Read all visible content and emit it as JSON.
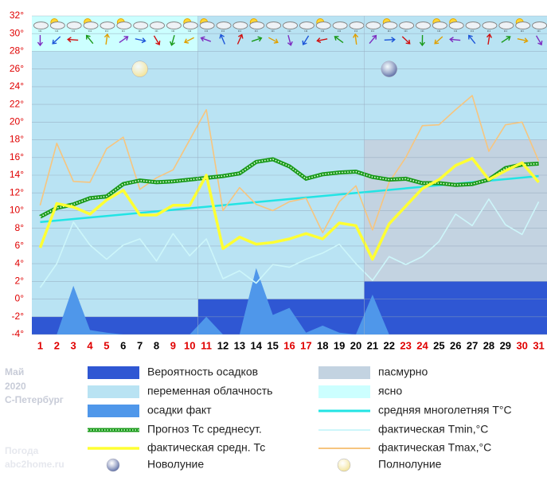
{
  "chart_data": {
    "type": "line",
    "x": [
      1,
      2,
      3,
      4,
      5,
      6,
      7,
      8,
      9,
      10,
      11,
      12,
      13,
      14,
      15,
      16,
      17,
      18,
      19,
      20,
      21,
      22,
      23,
      24,
      25,
      26,
      27,
      28,
      29,
      30,
      31
    ],
    "xlim": [
      0.5,
      31.5
    ],
    "xticks": [
      1,
      2,
      3,
      4,
      5,
      6,
      7,
      8,
      9,
      10,
      11,
      12,
      13,
      14,
      15,
      16,
      17,
      18,
      19,
      20,
      21,
      22,
      23,
      24,
      25,
      26,
      27,
      28,
      29,
      30,
      31
    ],
    "xtick_colors": [
      "#e00000",
      "#e00000",
      "#e00000",
      "#e00000",
      "#e00000",
      "#000000",
      "#000000",
      "#000000",
      "#e00000",
      "#e00000",
      "#e00000",
      "#000000",
      "#000000",
      "#000000",
      "#000000",
      "#e00000",
      "#e00000",
      "#000000",
      "#000000",
      "#000000",
      "#000000",
      "#000000",
      "#e00000",
      "#e00000",
      "#000000",
      "#000000",
      "#000000",
      "#000000",
      "#000000",
      "#e00000",
      "#e00000"
    ],
    "ylim": [
      -4,
      32
    ],
    "yticks": [
      {
        "value": 32,
        "label": "32°"
      },
      {
        "value": 30,
        "label": "30°"
      },
      {
        "value": 28,
        "label": "28°"
      },
      {
        "value": 26,
        "label": "26°"
      },
      {
        "value": 24,
        "label": "24°"
      },
      {
        "value": 22,
        "label": "22°"
      },
      {
        "value": 20,
        "label": "20°"
      },
      {
        "value": 18,
        "label": "18°"
      },
      {
        "value": 16,
        "label": "16°"
      },
      {
        "value": 14,
        "label": "14°"
      },
      {
        "value": 12,
        "label": "12°"
      },
      {
        "value": 10,
        "label": "10°"
      },
      {
        "value": 8,
        "label": "8°"
      },
      {
        "value": 6,
        "label": "6°"
      },
      {
        "value": 4,
        "label": "4°"
      },
      {
        "value": 2,
        "label": "2°"
      },
      {
        "value": 0,
        "label": "0°"
      },
      {
        "value": -2,
        "label": "-2°"
      },
      {
        "value": -4,
        "label": "-4°"
      }
    ],
    "grid": true,
    "areas": [
      {
        "name": "Вероятность осадков",
        "color": "#2f57d3",
        "rects": [
          [
            0.5,
            10.5,
            -4,
            -2
          ],
          [
            10.5,
            20.5,
            -4,
            0
          ],
          [
            20.5,
            31.5,
            -4,
            2
          ]
        ]
      },
      {
        "name": "пасмурно",
        "color": "#c3d3e1",
        "rects": [
          [
            20.5,
            31.5,
            2,
            18
          ]
        ]
      },
      {
        "name": "переменная облачность",
        "color": "#b9e3f3",
        "rects": [
          [
            0.5,
            10.5,
            -2,
            28
          ],
          [
            10.5,
            20.5,
            0,
            32
          ],
          [
            20.5,
            31.5,
            18,
            32
          ]
        ]
      },
      {
        "name": "ясно",
        "color": "#ccffff",
        "rects": [
          [
            0.5,
            10.5,
            28,
            32
          ]
        ]
      }
    ],
    "series": [
      {
        "name": "осадки факт",
        "kind": "area",
        "color": "#4f97ea",
        "values": [
          -4,
          -4,
          1.5,
          -3.5,
          -3.8,
          -4,
          -4,
          -4,
          -4,
          -4,
          -2,
          -4,
          -4,
          3.5,
          -1.8,
          -1,
          -3.8,
          -3,
          -3.8,
          -4,
          0.5,
          -4,
          -4,
          -4,
          -4,
          -4,
          -4,
          -4,
          -4,
          -4,
          -4
        ]
      },
      {
        "name": "Прогноз Тс среднесут.",
        "kind": "dotted",
        "color": "#1a9a1a",
        "values": [
          9.3,
          10.3,
          10.7,
          11.4,
          11.6,
          13.0,
          13.4,
          13.2,
          13.3,
          13.5,
          13.7,
          13.9,
          14.2,
          15.5,
          15.8,
          15.0,
          13.6,
          14.1,
          14.3,
          14.4,
          13.8,
          13.5,
          13.6,
          13.1,
          13.1,
          12.9,
          13.0,
          13.5,
          14.8,
          15.2,
          15.3
        ]
      },
      {
        "name": "фактическая средн. Тс",
        "kind": "thick",
        "color": "#ffff33",
        "values": [
          5.8,
          10.8,
          10.4,
          9.6,
          11.2,
          12.3,
          9.5,
          9.5,
          10.6,
          10.6,
          14.0,
          5.7,
          7.0,
          6.2,
          6.4,
          6.8,
          7.4,
          6.8,
          8.6,
          8.3,
          4.5,
          8.5,
          10.5,
          12.5,
          13.5,
          15.1,
          15.9,
          13.5,
          14.5,
          15.4,
          13.2
        ]
      },
      {
        "name": "средняя многолетняя T°C",
        "kind": "line",
        "color": "#22e4e4",
        "x": [
          1,
          31
        ],
        "values": [
          8.7,
          13.9
        ]
      },
      {
        "name": "фактическая Tmin,°C",
        "kind": "thin",
        "color": "#cdf6fa",
        "values": [
          1.3,
          4.0,
          8.7,
          6.1,
          4.5,
          6.1,
          6.8,
          4.3,
          7.4,
          4.9,
          6.8,
          2.3,
          3.2,
          1.8,
          3.9,
          3.6,
          4.5,
          5.2,
          6.2,
          4.0,
          2.1,
          4.8,
          3.9,
          4.8,
          6.5,
          9.6,
          8.3,
          11.3,
          8.4,
          7.3,
          11.0
        ]
      },
      {
        "name": "фактическая Tmax,°C",
        "kind": "thin",
        "color": "#f7c57e",
        "values": [
          10.6,
          17.6,
          13.3,
          13.2,
          17.0,
          18.3,
          12.4,
          13.7,
          14.6,
          18.0,
          21.4,
          10.0,
          12.6,
          10.7,
          10.0,
          11.0,
          11.4,
          7.5,
          11.0,
          12.8,
          7.8,
          13.2,
          16.0,
          19.6,
          19.7,
          21.4,
          23.0,
          16.7,
          19.7,
          20.0,
          15.6
        ]
      }
    ],
    "moons": [
      {
        "name": "Новолуние",
        "color": "#6373a8",
        "x": 22,
        "y": 26
      },
      {
        "name": "Полнолуние",
        "color": "#f3e49a",
        "x": 7,
        "y": 26
      }
    ],
    "info": {
      "month": "Май",
      "year": "2020",
      "city": "С-Петербург",
      "site_label": "Погода",
      "site": "abc2home.ru"
    }
  }
}
